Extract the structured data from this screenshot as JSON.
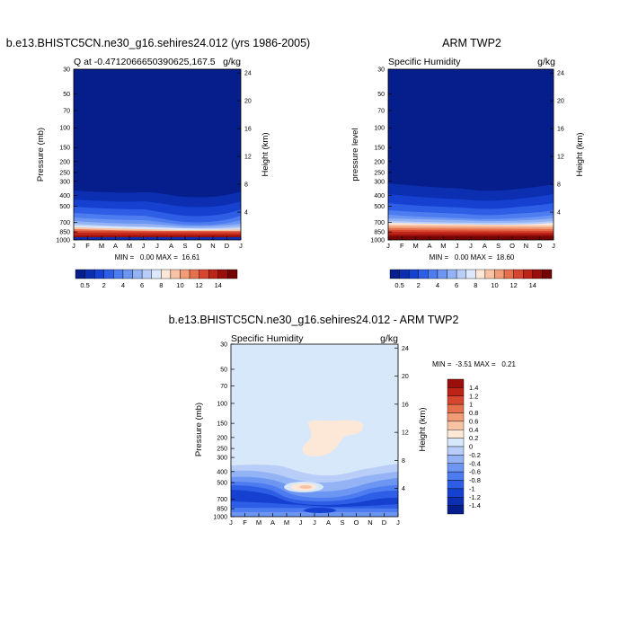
{
  "colors": {
    "abs_scale": [
      "#051e8c",
      "#0c2fb2",
      "#1540d0",
      "#2f5ee6",
      "#4d7cf0",
      "#6d96f3",
      "#93b3f5",
      "#b8cef8",
      "#dce8fb",
      "#fde8d8",
      "#f7c3a4",
      "#f19c76",
      "#e6704d",
      "#d6452f",
      "#bc2418",
      "#9a0e0b",
      "#740404"
    ],
    "diff_scale": [
      "#051e8c",
      "#0c2fb2",
      "#1540d0",
      "#2f5ee6",
      "#4d7cf0",
      "#6d96f3",
      "#93b3f5",
      "#b8cef8",
      "#d8e8fb",
      "#fde8d8",
      "#f7c3a4",
      "#f19c76",
      "#e6704d",
      "#d6452f",
      "#bc2418",
      "#9a0e0b"
    ]
  },
  "chart_data": [
    {
      "type": "heatmap",
      "title": "b.e13.BHISTC5CN.ne30_g16.sehires24.012 (yrs 1986-2005)",
      "left_label": "Q at -0.4712066650390625,167.5",
      "right_label": "g/kg",
      "ylabel": "Pressure (mb)",
      "y2label": "Height (km)",
      "x": [
        "J",
        "F",
        "M",
        "A",
        "M",
        "J",
        "J",
        "A",
        "S",
        "O",
        "N",
        "D",
        "J"
      ],
      "y_pressure_ticks": [
        "30",
        "50",
        "70",
        "100",
        "150",
        "200",
        "250",
        "300",
        "400",
        "500",
        "700",
        "850",
        "1000"
      ],
      "y_height_ticks": [
        "24",
        "20",
        "16",
        "12",
        "8",
        "4"
      ],
      "minmax": "MIN =   0.00 MAX =  16.61",
      "min": 0.0,
      "max": 16.61,
      "colorbar_labels": [
        "0.5",
        "2",
        "4",
        "6",
        "8",
        "10",
        "12",
        "14"
      ],
      "moist_layer_top_pressure_by_month": [
        400,
        400,
        400,
        400,
        400,
        420,
        440,
        430,
        430,
        430,
        410,
        400,
        400
      ]
    },
    {
      "type": "heatmap",
      "title": "ARM TWP2",
      "left_label": "Specific Humidity",
      "right_label": "g/kg",
      "ylabel": "pressure level",
      "y2label": "Height (km)",
      "x": [
        "J",
        "F",
        "M",
        "A",
        "M",
        "J",
        "J",
        "A",
        "S",
        "O",
        "N",
        "D",
        "J"
      ],
      "y_pressure_ticks": [
        "30",
        "50",
        "70",
        "100",
        "150",
        "200",
        "250",
        "300",
        "400",
        "500",
        "700",
        "850",
        "1000"
      ],
      "y_height_ticks": [
        "24",
        "20",
        "16",
        "12",
        "8",
        "4"
      ],
      "minmax": "MIN =   0.00 MAX =  18.60",
      "min": 0.0,
      "max": 18.6,
      "colorbar_labels": [
        "0.5",
        "2",
        "4",
        "6",
        "8",
        "10",
        "12",
        "14"
      ],
      "moist_layer_top_pressure_by_month": [
        330,
        330,
        320,
        320,
        330,
        340,
        350,
        345,
        335,
        330,
        320,
        325,
        330
      ]
    },
    {
      "type": "heatmap",
      "title": "b.e13.BHISTC5CN.ne30_g16.sehires24.012 - ARM TWP2",
      "left_label": "Specific Humidity",
      "right_label": "g/kg",
      "ylabel": "Pressure (mb)",
      "y2label": "Height (km)",
      "x": [
        "J",
        "F",
        "M",
        "A",
        "M",
        "J",
        "J",
        "A",
        "S",
        "O",
        "N",
        "D",
        "J"
      ],
      "y_pressure_ticks": [
        "30",
        "50",
        "70",
        "100",
        "150",
        "200",
        "250",
        "300",
        "400",
        "500",
        "700",
        "850",
        "1000"
      ],
      "y_height_ticks": [
        "24",
        "20",
        "16",
        "12",
        "8",
        "4"
      ],
      "minmax": "MIN =  -3.51 MAX =   0.21",
      "min": -3.51,
      "max": 0.21,
      "colorbar_labels": [
        "1.4",
        "1.2",
        "1",
        "0.8",
        "0.6",
        "0.4",
        "0.2",
        "0",
        "-0.2",
        "-0.4",
        "-0.6",
        "-0.8",
        "-1",
        "-1.2",
        "-1.4"
      ]
    }
  ]
}
